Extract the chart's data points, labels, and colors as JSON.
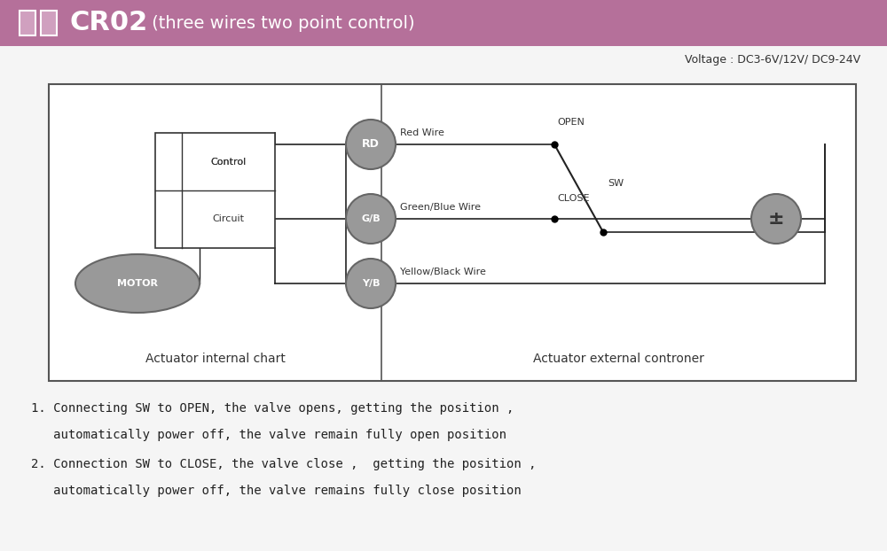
{
  "title_text": "CR02",
  "title_sub": " (three wires two point control)",
  "title_bg_color": "#b5709a",
  "voltage_text": "Voltage : DC3-6V/12V/ DC9-24V",
  "bg_color": "#f5f5f5",
  "internal_label": "Actuator internal chart",
  "external_label": "Actuator external controner",
  "gray_color": "#999999",
  "dark_gray": "#666666",
  "line_color": "#222222",
  "text1_line1": "1. Connecting SW to OPEN, the valve opens, getting the position ,",
  "text1_line2": "   automatically power off, the valve remain fully open position",
  "text2_line1": "2. Connection SW to CLOSE, the valve close ,  getting the position ,",
  "text2_line2": "   automatically power off, the valve remains fully close position"
}
